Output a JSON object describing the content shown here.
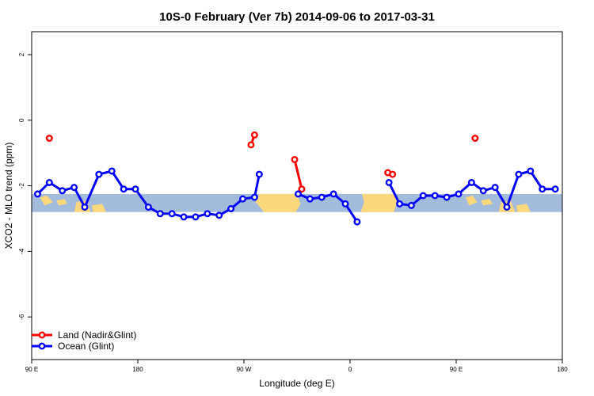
{
  "chart_data": {
    "type": "line",
    "title": "10S-0 February (Ver 7b)   2014-09-06 to 2017-03-31",
    "xlabel": "Longitude (deg E)",
    "ylabel": "XCO2 - MLO trend (ppm)",
    "xlim": [
      90,
      540
    ],
    "ylim": [
      -7.3,
      2.7
    ],
    "x_ticks": [
      {
        "value": 90,
        "label": "90 E"
      },
      {
        "value": 180,
        "label": "180"
      },
      {
        "value": 270,
        "label": "90 W"
      },
      {
        "value": 360,
        "label": "0"
      },
      {
        "value": 450,
        "label": "90 E"
      },
      {
        "value": 540,
        "label": "180"
      }
    ],
    "y_ticks": [
      {
        "value": 2,
        "label": "2"
      },
      {
        "value": 0,
        "label": "0"
      },
      {
        "value": -2,
        "label": "-2"
      },
      {
        "value": -4,
        "label": "-4"
      },
      {
        "value": -6,
        "label": "-6"
      }
    ],
    "legend_position": "bottom-left",
    "grid": false,
    "background_band": {
      "y_range": [
        -2.8,
        -2.25
      ],
      "ocean_color": "#a4bcdc",
      "land_color": "#fcd87c"
    },
    "series": [
      {
        "name": "Land (Nadir&Glint)",
        "color": "#ff0000",
        "segments": [
          [
            [
              105,
              -0.55
            ]
          ],
          [
            [
              276,
              -0.75
            ],
            [
              279,
              -0.45
            ]
          ],
          [
            [
              313,
              -1.2
            ],
            [
              319,
              -2.1
            ]
          ],
          [
            [
              392,
              -1.6
            ],
            [
              396,
              -1.65
            ]
          ],
          [
            [
              466,
              -0.55
            ]
          ]
        ]
      },
      {
        "name": "Ocean (Glint)",
        "color": "#0000ff",
        "segments": [
          [
            [
              95,
              -2.25
            ],
            [
              105,
              -1.9
            ],
            [
              116,
              -2.15
            ],
            [
              126,
              -2.05
            ],
            [
              135,
              -2.65
            ],
            [
              147,
              -1.65
            ],
            [
              158,
              -1.55
            ],
            [
              168,
              -2.1
            ],
            [
              178,
              -2.1
            ],
            [
              189,
              -2.65
            ],
            [
              199,
              -2.85
            ],
            [
              209,
              -2.85
            ],
            [
              219,
              -2.95
            ],
            [
              229,
              -2.95
            ],
            [
              239,
              -2.85
            ],
            [
              249,
              -2.9
            ],
            [
              259,
              -2.7
            ],
            [
              269,
              -2.4
            ],
            [
              279,
              -2.35
            ],
            [
              283,
              -1.65
            ]
          ],
          [
            [
              316,
              -2.25
            ],
            [
              326,
              -2.4
            ],
            [
              336,
              -2.35
            ],
            [
              346,
              -2.25
            ],
            [
              356,
              -2.55
            ],
            [
              366,
              -3.1
            ]
          ],
          [
            [
              393,
              -1.9
            ],
            [
              402,
              -2.55
            ],
            [
              412,
              -2.6
            ],
            [
              422,
              -2.3
            ],
            [
              432,
              -2.3
            ],
            [
              442,
              -2.35
            ],
            [
              452,
              -2.25
            ],
            [
              463,
              -1.9
            ],
            [
              473,
              -2.15
            ],
            [
              483,
              -2.05
            ],
            [
              493,
              -2.65
            ],
            [
              503,
              -1.65
            ],
            [
              513,
              -1.55
            ],
            [
              523,
              -2.1
            ],
            [
              534,
              -2.1
            ]
          ]
        ]
      }
    ]
  }
}
